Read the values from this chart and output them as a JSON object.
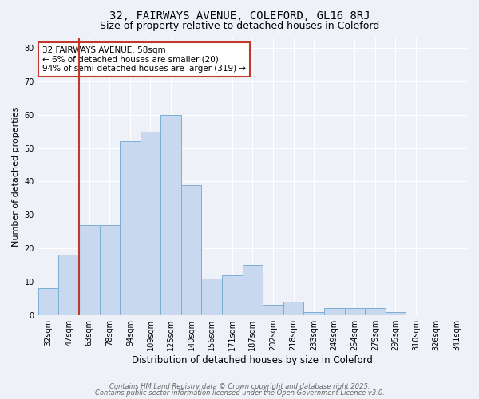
{
  "title1": "32, FAIRWAYS AVENUE, COLEFORD, GL16 8RJ",
  "title2": "Size of property relative to detached houses in Coleford",
  "xlabel": "Distribution of detached houses by size in Coleford",
  "ylabel": "Number of detached properties",
  "categories": [
    "32sqm",
    "47sqm",
    "63sqm",
    "78sqm",
    "94sqm",
    "109sqm",
    "125sqm",
    "140sqm",
    "156sqm",
    "171sqm",
    "187sqm",
    "202sqm",
    "218sqm",
    "233sqm",
    "249sqm",
    "264sqm",
    "279sqm",
    "295sqm",
    "310sqm",
    "326sqm",
    "341sqm"
  ],
  "values": [
    8,
    18,
    27,
    27,
    52,
    55,
    60,
    39,
    11,
    12,
    15,
    3,
    4,
    1,
    2,
    2,
    2,
    1,
    0,
    0,
    0
  ],
  "bar_color": "#c8d8ee",
  "bar_edge_color": "#7bafd4",
  "annotation_text": "32 FAIRWAYS AVENUE: 58sqm\n← 6% of detached houses are smaller (20)\n94% of semi-detached houses are larger (319) →",
  "annotation_box_color": "white",
  "annotation_box_edge_color": "#c0392b",
  "vertical_line_color": "#c0392b",
  "ylim": [
    0,
    83
  ],
  "yticks": [
    0,
    10,
    20,
    30,
    40,
    50,
    60,
    70,
    80
  ],
  "footer1": "Contains HM Land Registry data © Crown copyright and database right 2025.",
  "footer2": "Contains public sector information licensed under the Open Government Licence v3.0.",
  "background_color": "#eef2f8",
  "plot_bg_color": "#eef2f8",
  "grid_color": "#ffffff",
  "title1_fontsize": 10,
  "title2_fontsize": 9,
  "tick_fontsize": 7,
  "ylabel_fontsize": 8,
  "xlabel_fontsize": 8.5
}
